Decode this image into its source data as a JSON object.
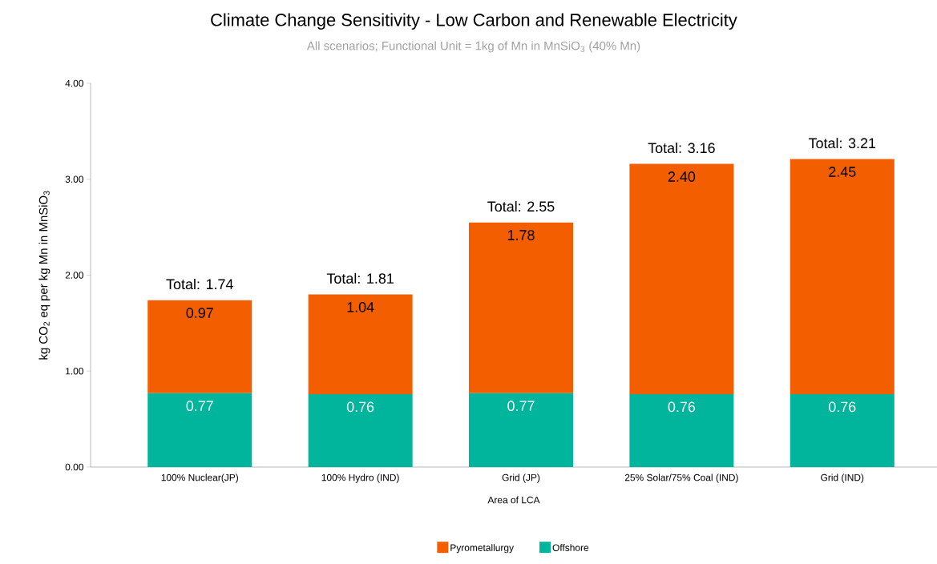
{
  "chart_data": {
    "type": "bar",
    "title": "Climate Change Sensitivity - Low Carbon and Renewable Electricity",
    "subtitle": "All scenarios; Functional Unit = 1kg of Mn in  MnSiO$_{3}$ (40% Mn)",
    "xlabel": "Area of LCA",
    "ylabel": "kg CO$_{2}$ eq per kg Mn in MnSiO$_{3}$",
    "categories": [
      "100% Nuclear(JP)",
      "100% Hydro (IND)",
      "Grid (JP)",
      "25% Solar/75% Coal (IND)",
      "Grid (IND)"
    ],
    "stacked": true,
    "series": [
      {
        "name": "Offshore",
        "color": "#00b59c",
        "values": [
          0.77,
          0.76,
          0.77,
          0.76,
          0.76
        ],
        "value_labels": [
          "0.77",
          "0.76",
          "0.77",
          "0.76",
          "0.76"
        ]
      },
      {
        "name": "Pyrometallurgy",
        "color": "#f35f00",
        "values": [
          0.97,
          1.04,
          1.78,
          2.4,
          2.45
        ],
        "value_labels": [
          "0.97",
          "1.04",
          "1.78",
          "2.40",
          "2.45"
        ]
      }
    ],
    "totals": [
      "Total: 1.74",
      "Total: 1.81",
      "Total: 2.55",
      "Total: 3.16",
      "Total: 3.21"
    ],
    "ylim": [
      0,
      4
    ],
    "yticks": [
      {
        "value": 0,
        "label": "0.00"
      },
      {
        "value": 1,
        "label": "1.00"
      },
      {
        "value": 2,
        "label": "2.00"
      },
      {
        "value": 3,
        "label": "3.00"
      },
      {
        "value": 4,
        "label": "4.00"
      }
    ],
    "legend": "bottom"
  }
}
